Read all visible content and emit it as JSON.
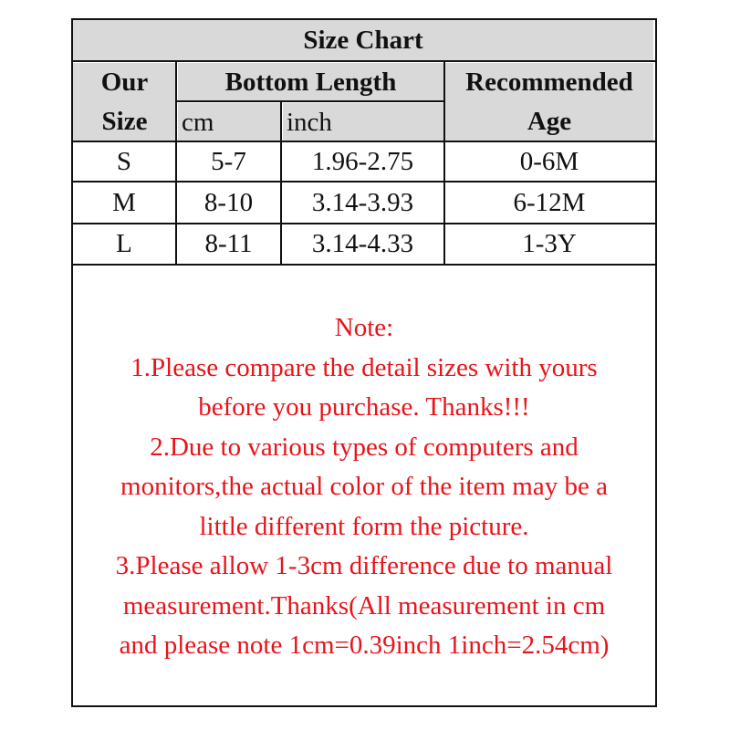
{
  "title": "Size Chart",
  "headers": {
    "size": "Our Size",
    "size_l1": "Our",
    "size_l2": "Size",
    "length": "Bottom Length",
    "cm": "cm",
    "inch": "inch",
    "age_l1": "Recommended",
    "age_l2": "Age"
  },
  "rows": [
    {
      "size": "S",
      "cm": "5-7",
      "inch": "1.96-2.75",
      "age": "0-6M"
    },
    {
      "size": "M",
      "cm": "8-10",
      "inch": "3.14-3.93",
      "age": "6-12M"
    },
    {
      "size": "L",
      "cm": "8-11",
      "inch": "3.14-4.33",
      "age": "1-3Y"
    }
  ],
  "note_lines": [
    "Note:",
    "1.Please compare the detail sizes with yours",
    "before you purchase. Thanks!!!",
    "2.Due to various types of computers and",
    "monitors,the actual color of the item may be a",
    "little different form the picture.",
    "3.Please allow 1-3cm difference due to manual",
    "measurement.Thanks(All measurement in cm",
    "and please note 1cm=0.39inch 1inch=2.54cm)"
  ],
  "colors": {
    "header_bg": "#d9d9d9",
    "note_text": "#e8141b"
  }
}
